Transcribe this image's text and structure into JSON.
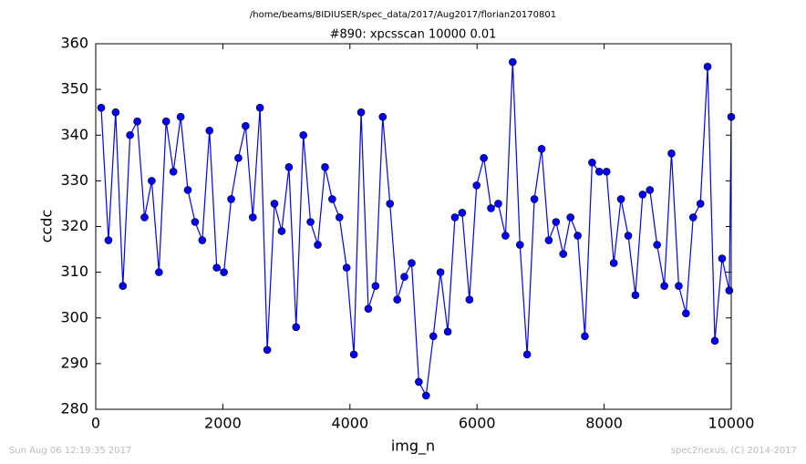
{
  "chart_data": {
    "type": "line",
    "suptitle": "/home/beams/8IDIUSER/spec_data/2017/Aug2017/florian20170801",
    "title": "#890: xpcsscan 10000 0.01",
    "x_label": "img_n",
    "y_label": "ccdc",
    "footer_left": "Sun Aug 06 12:19:35 2017",
    "footer_right": "spec2nexus, (C) 2014-2017",
    "x": [
      86,
      200,
      313,
      427,
      540,
      654,
      768,
      881,
      995,
      1108,
      1222,
      1336,
      1449,
      1563,
      1676,
      1790,
      1904,
      2017,
      2131,
      2244,
      2358,
      2472,
      2585,
      2699,
      2812,
      2926,
      3040,
      3153,
      3267,
      3380,
      3494,
      3608,
      3721,
      3835,
      3948,
      4062,
      4176,
      4289,
      4403,
      4516,
      4630,
      4744,
      4857,
      4971,
      5084,
      5198,
      5312,
      5425,
      5539,
      5652,
      5766,
      5880,
      5993,
      6107,
      6220,
      6334,
      6448,
      6561,
      6675,
      6788,
      6902,
      7016,
      7129,
      7243,
      7356,
      7470,
      7584,
      7697,
      7811,
      7924,
      8038,
      8152,
      8265,
      8379,
      8492,
      8606,
      8720,
      8833,
      8947,
      9060,
      9174,
      9288,
      9401,
      9515,
      9628,
      9742,
      9856,
      9969,
      10000
    ],
    "series": [
      {
        "name": "ccdc",
        "color": "#0000ff",
        "values": [
          346,
          317,
          345,
          307,
          340,
          343,
          322,
          330,
          310,
          343,
          332,
          344,
          328,
          321,
          317,
          341,
          311,
          310,
          326,
          335,
          342,
          322,
          346,
          293,
          325,
          319,
          333,
          298,
          340,
          321,
          316,
          333,
          326,
          322,
          311,
          292,
          345,
          302,
          307,
          344,
          325,
          304,
          309,
          312,
          286,
          283,
          296,
          310,
          297,
          322,
          323,
          304,
          329,
          335,
          324,
          325,
          318,
          356,
          316,
          292,
          326,
          337,
          317,
          321,
          314,
          322,
          318,
          296,
          334,
          332,
          332,
          312,
          326,
          318,
          305,
          327,
          328,
          316,
          307,
          336,
          307,
          301,
          322,
          325,
          355,
          295,
          313,
          306,
          344
        ]
      }
    ],
    "xlim": [
      0,
      10000
    ],
    "xticks": [
      0,
      2000,
      4000,
      6000,
      8000,
      10000
    ],
    "ylim": [
      280,
      360
    ],
    "yticks": [
      280,
      290,
      300,
      310,
      320,
      330,
      340,
      350,
      360
    ],
    "grid": false
  }
}
